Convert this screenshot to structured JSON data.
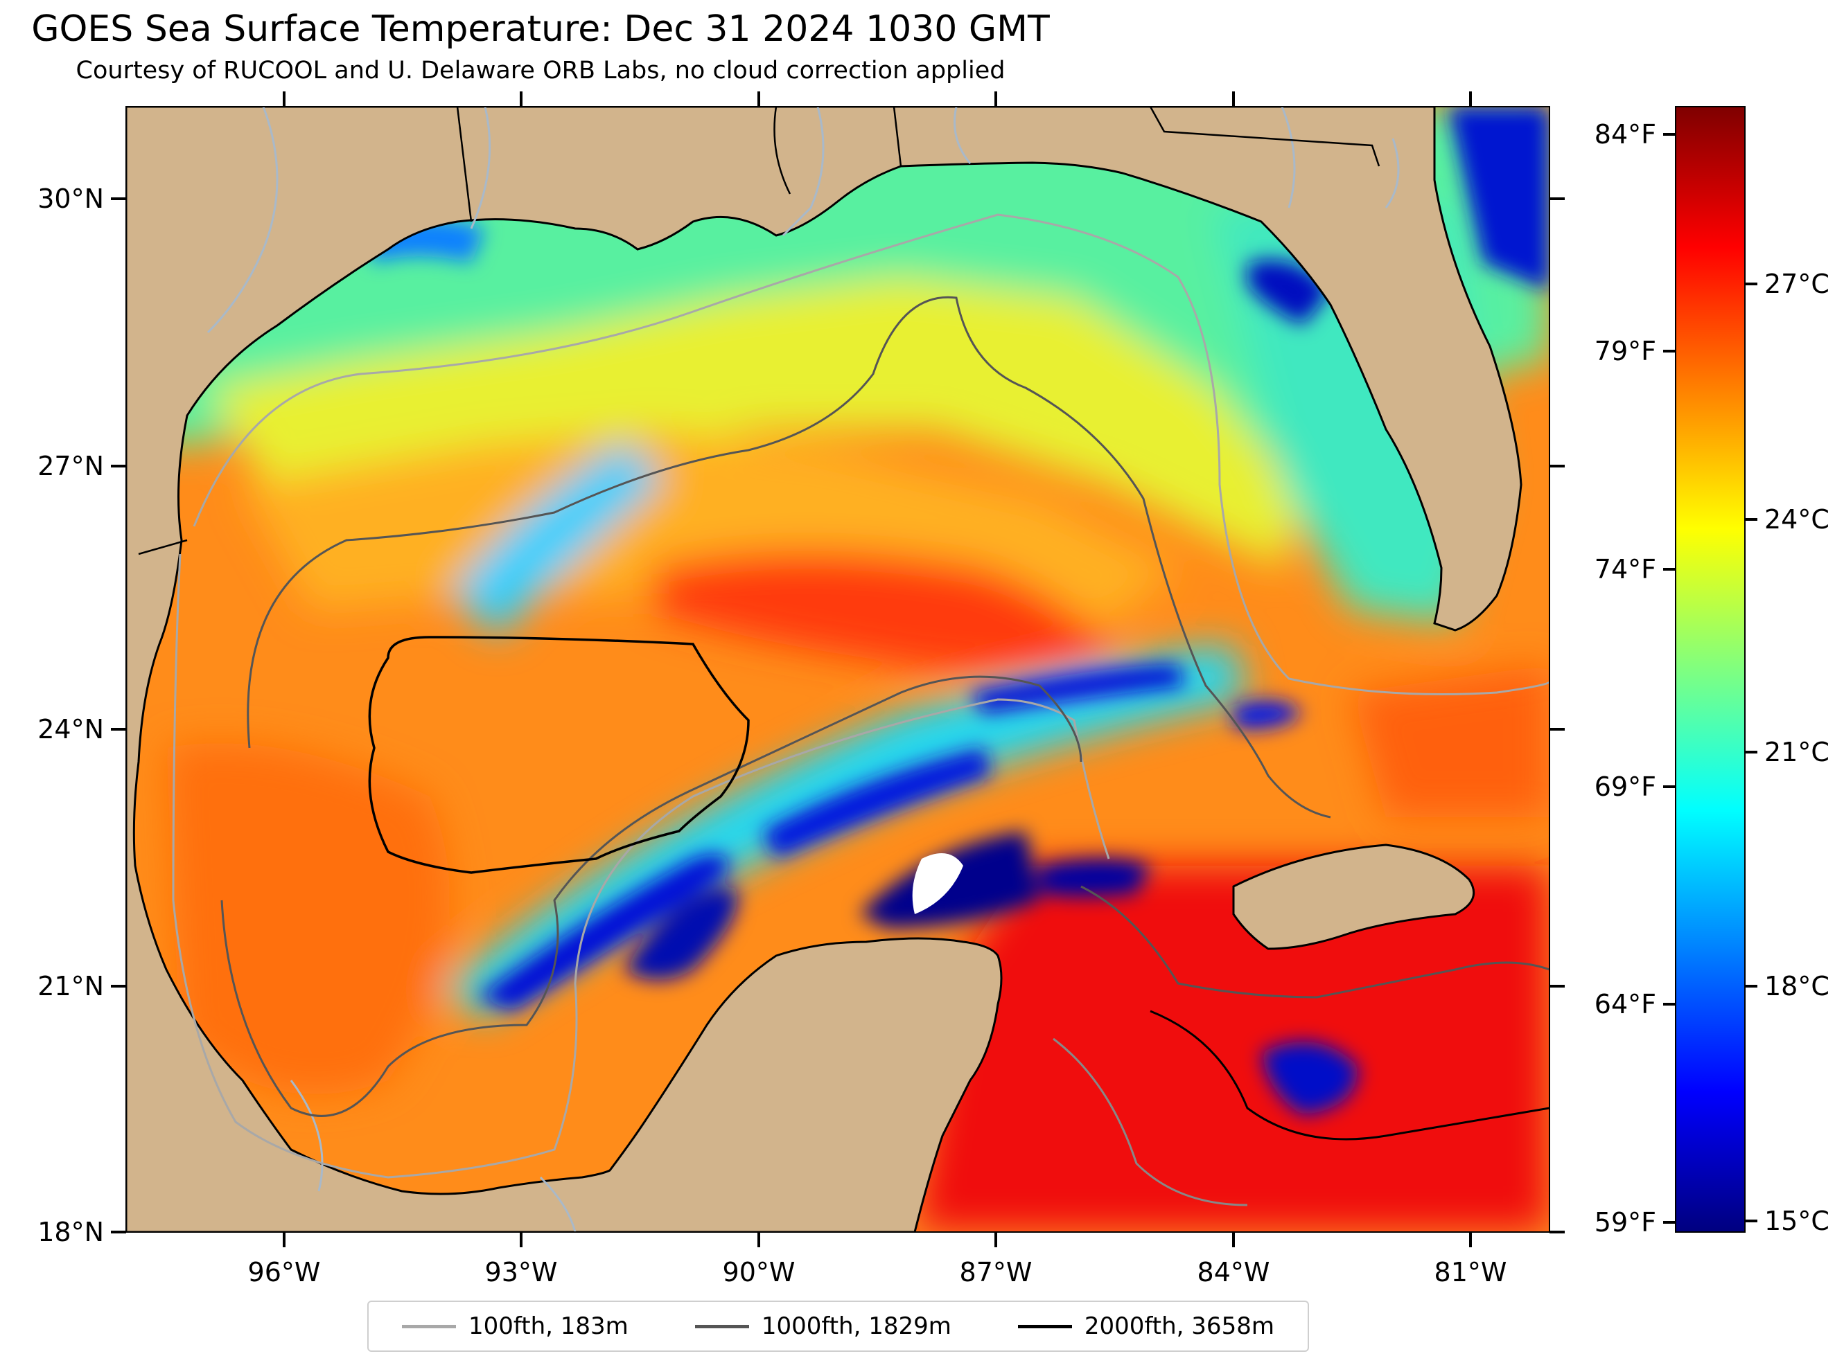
{
  "header": {
    "title": "GOES Sea Surface Temperature: Dec 31 2024 1030 GMT",
    "subtitle": "Courtesy of RUCOOL and U. Delaware ORB Labs, no cloud correction applied"
  },
  "map": {
    "projection": "Mercator",
    "extent": {
      "lon_min": -98.0,
      "lon_max": -80.0,
      "lat_min": 18.0,
      "lat_max": 31.0
    },
    "latitude_labels": [
      "30°N",
      "27°N",
      "24°N",
      "21°N",
      "18°N"
    ],
    "longitude_labels": [
      "96°W",
      "93°W",
      "90°W",
      "87°W",
      "84°W",
      "81°W"
    ],
    "colors": {
      "land": "#d2b48c",
      "coastline": "#000000",
      "rivers": "#a9b9c9",
      "no_data": "#ffffff"
    }
  },
  "colorbar": {
    "colormap": "jet",
    "range_celsius": [
      14.6,
      29.2
    ],
    "celsius_labels": [
      "27°C",
      "24°C",
      "21°C",
      "18°C",
      "15°C"
    ],
    "fahrenheit_labels": [
      "84°F",
      "79°F",
      "74°F",
      "69°F",
      "64°F",
      "59°F"
    ]
  },
  "legend": {
    "items": [
      {
        "label": "100fth, 183m",
        "color": "#a8a8a8"
      },
      {
        "label": "1000fth, 1829m",
        "color": "#555555"
      },
      {
        "label": "2000fth, 3658m",
        "color": "#000000"
      }
    ]
  }
}
